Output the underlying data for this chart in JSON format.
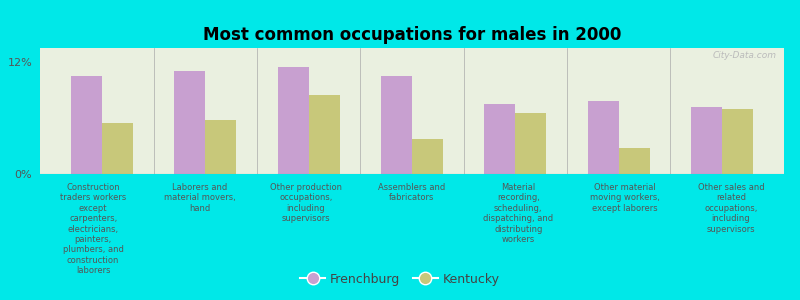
{
  "title": "Most common occupations for males in 2000",
  "categories": [
    "Construction\ntraders workers\nexcept\ncarpenters,\nelectricians,\npainters,\nplumbers, and\nconstruction\nlaborers",
    "Laborers and\nmaterial movers,\nhand",
    "Other production\noccupations,\nincluding\nsupervisors",
    "Assemblers and\nfabricators",
    "Material\nrecording,\nscheduling,\ndispatching, and\ndistributing\nworkers",
    "Other material\nmoving workers,\nexcept laborers",
    "Other sales and\nrelated\noccupations,\nincluding\nsupervisors"
  ],
  "frenchburg": [
    10.5,
    11.0,
    11.5,
    10.5,
    7.5,
    7.8,
    7.2
  ],
  "kentucky": [
    5.5,
    5.8,
    8.5,
    3.8,
    6.5,
    2.8,
    7.0
  ],
  "frenchburg_color": "#c8a0d0",
  "kentucky_color": "#c8c87a",
  "background_color": "#00e8e8",
  "plot_bg_color": "#eaf0e0",
  "ylim": [
    0,
    13.5
  ],
  "ytick_labels": [
    "0%",
    "12%"
  ],
  "ytick_vals": [
    0,
    12
  ],
  "bar_width": 0.3,
  "watermark": "City-Data.com",
  "label_fontsize": 6.0,
  "title_fontsize": 12
}
